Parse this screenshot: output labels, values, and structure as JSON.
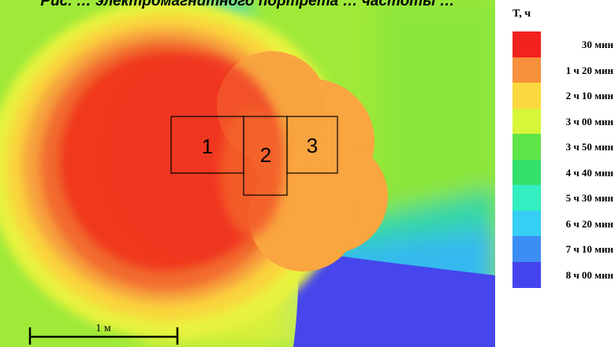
{
  "title": "Рис. … электромагнитного портрета … частоты …",
  "legend": {
    "title": "T, ч",
    "items": [
      {
        "label": "30 мин",
        "color": "#f2221e"
      },
      {
        "label": "1 ч 20 мин",
        "color": "#f7903c"
      },
      {
        "label": "2 ч 10 мин",
        "color": "#fbd93e"
      },
      {
        "label": "3 ч 00 мин",
        "color": "#d8f53a"
      },
      {
        "label": "3 ч 50 мин",
        "color": "#5fe448"
      },
      {
        "label": "4 ч 40 мин",
        "color": "#33e06c"
      },
      {
        "label": "5 ч 30 мин",
        "color": "#32eec0"
      },
      {
        "label": "6 ч 20 мин",
        "color": "#36cff4"
      },
      {
        "label": "7 ч 10 мин",
        "color": "#3d8ef4"
      },
      {
        "label": "8 ч 00 мин",
        "color": "#4444ef"
      }
    ]
  },
  "zones": [
    {
      "label": "1"
    },
    {
      "label": "2"
    },
    {
      "label": "3"
    }
  ],
  "scale_bar": {
    "label": "1 м"
  }
}
